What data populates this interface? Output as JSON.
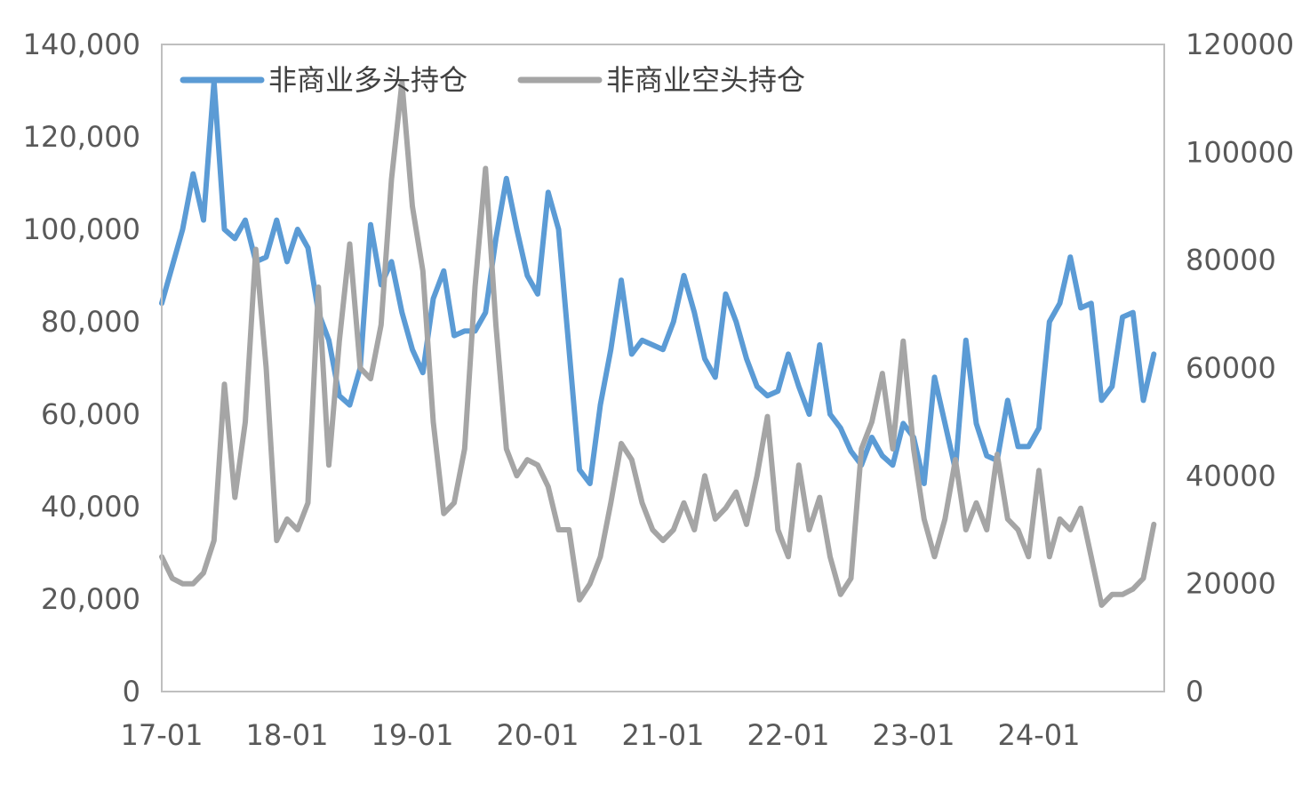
{
  "chart_data": {
    "type": "line",
    "title": "",
    "xlabel": "",
    "ylabel": "",
    "x_tick_labels": [
      "17-01",
      "18-01",
      "19-01",
      "20-01",
      "21-01",
      "22-01",
      "23-01",
      "24-01"
    ],
    "x_start": "2017-01",
    "x_end": "2024-12",
    "y_left": {
      "lim": [
        0,
        140000
      ],
      "tick_labels": [
        "0",
        "20,000",
        "40,000",
        "60,000",
        "80,000",
        "100,000",
        "120,000",
        "140,000"
      ]
    },
    "y_right": {
      "lim": [
        0,
        120000
      ],
      "tick_labels": [
        "0",
        "20000",
        "40000",
        "60000",
        "80000",
        "100000",
        "120000"
      ]
    },
    "grid": false,
    "legend_position": "top-left",
    "series": [
      {
        "name": "非商业多头持仓",
        "axis": "left",
        "color": "#5b9bd5",
        "points": [
          [
            "2017-01",
            84000
          ],
          [
            "2017-02",
            92000
          ],
          [
            "2017-03",
            100000
          ],
          [
            "2017-04",
            112000
          ],
          [
            "2017-05",
            102000
          ],
          [
            "2017-06",
            132000
          ],
          [
            "2017-07",
            100000
          ],
          [
            "2017-08",
            98000
          ],
          [
            "2017-09",
            102000
          ],
          [
            "2017-10",
            93000
          ],
          [
            "2017-11",
            94000
          ],
          [
            "2017-12",
            102000
          ],
          [
            "2018-01",
            93000
          ],
          [
            "2018-02",
            100000
          ],
          [
            "2018-03",
            96000
          ],
          [
            "2018-04",
            82000
          ],
          [
            "2018-05",
            76000
          ],
          [
            "2018-06",
            64000
          ],
          [
            "2018-07",
            62000
          ],
          [
            "2018-08",
            70000
          ],
          [
            "2018-09",
            101000
          ],
          [
            "2018-10",
            88000
          ],
          [
            "2018-11",
            93000
          ],
          [
            "2018-12",
            82000
          ],
          [
            "2019-01",
            74000
          ],
          [
            "2019-02",
            69000
          ],
          [
            "2019-03",
            85000
          ],
          [
            "2019-04",
            91000
          ],
          [
            "2019-05",
            77000
          ],
          [
            "2019-06",
            78000
          ],
          [
            "2019-07",
            78000
          ],
          [
            "2019-08",
            82000
          ],
          [
            "2019-09",
            98000
          ],
          [
            "2019-10",
            111000
          ],
          [
            "2019-11",
            100000
          ],
          [
            "2019-12",
            90000
          ],
          [
            "2020-01",
            86000
          ],
          [
            "2020-02",
            108000
          ],
          [
            "2020-03",
            100000
          ],
          [
            "2020-04",
            74000
          ],
          [
            "2020-05",
            48000
          ],
          [
            "2020-06",
            45000
          ],
          [
            "2020-07",
            62000
          ],
          [
            "2020-08",
            74000
          ],
          [
            "2020-09",
            89000
          ],
          [
            "2020-10",
            73000
          ],
          [
            "2020-11",
            76000
          ],
          [
            "2020-12",
            75000
          ],
          [
            "2021-01",
            74000
          ],
          [
            "2021-02",
            80000
          ],
          [
            "2021-03",
            90000
          ],
          [
            "2021-04",
            82000
          ],
          [
            "2021-05",
            72000
          ],
          [
            "2021-06",
            68000
          ],
          [
            "2021-07",
            86000
          ],
          [
            "2021-08",
            80000
          ],
          [
            "2021-09",
            72000
          ],
          [
            "2021-10",
            66000
          ],
          [
            "2021-11",
            64000
          ],
          [
            "2021-12",
            65000
          ],
          [
            "2022-01",
            73000
          ],
          [
            "2022-02",
            66000
          ],
          [
            "2022-03",
            60000
          ],
          [
            "2022-04",
            75000
          ],
          [
            "2022-05",
            60000
          ],
          [
            "2022-06",
            57000
          ],
          [
            "2022-07",
            52000
          ],
          [
            "2022-08",
            49000
          ],
          [
            "2022-09",
            55000
          ],
          [
            "2022-10",
            51000
          ],
          [
            "2022-11",
            49000
          ],
          [
            "2022-12",
            58000
          ],
          [
            "2023-01",
            55000
          ],
          [
            "2023-02",
            45000
          ],
          [
            "2023-03",
            68000
          ],
          [
            "2023-04",
            58000
          ],
          [
            "2023-05",
            48000
          ],
          [
            "2023-06",
            76000
          ],
          [
            "2023-07",
            58000
          ],
          [
            "2023-08",
            51000
          ],
          [
            "2023-09",
            50000
          ],
          [
            "2023-10",
            63000
          ],
          [
            "2023-11",
            53000
          ],
          [
            "2023-12",
            53000
          ],
          [
            "2024-01",
            57000
          ],
          [
            "2024-02",
            80000
          ],
          [
            "2024-03",
            84000
          ],
          [
            "2024-04",
            94000
          ],
          [
            "2024-05",
            83000
          ],
          [
            "2024-06",
            84000
          ],
          [
            "2024-07",
            63000
          ],
          [
            "2024-08",
            66000
          ],
          [
            "2024-09",
            81000
          ],
          [
            "2024-10",
            82000
          ],
          [
            "2024-11",
            63000
          ],
          [
            "2024-12",
            73000
          ]
        ]
      },
      {
        "name": "非商业空头持仓",
        "axis": "right",
        "color": "#a5a5a5",
        "points": [
          [
            "2017-01",
            25000
          ],
          [
            "2017-02",
            21000
          ],
          [
            "2017-03",
            20000
          ],
          [
            "2017-04",
            20000
          ],
          [
            "2017-05",
            22000
          ],
          [
            "2017-06",
            28000
          ],
          [
            "2017-07",
            57000
          ],
          [
            "2017-08",
            36000
          ],
          [
            "2017-09",
            50000
          ],
          [
            "2017-10",
            82000
          ],
          [
            "2017-11",
            60000
          ],
          [
            "2017-12",
            28000
          ],
          [
            "2018-01",
            32000
          ],
          [
            "2018-02",
            30000
          ],
          [
            "2018-03",
            35000
          ],
          [
            "2018-04",
            75000
          ],
          [
            "2018-05",
            42000
          ],
          [
            "2018-06",
            65000
          ],
          [
            "2018-07",
            83000
          ],
          [
            "2018-08",
            60000
          ],
          [
            "2018-09",
            58000
          ],
          [
            "2018-10",
            68000
          ],
          [
            "2018-11",
            95000
          ],
          [
            "2018-12",
            113000
          ],
          [
            "2019-01",
            90000
          ],
          [
            "2019-02",
            78000
          ],
          [
            "2019-03",
            50000
          ],
          [
            "2019-04",
            33000
          ],
          [
            "2019-05",
            35000
          ],
          [
            "2019-06",
            45000
          ],
          [
            "2019-07",
            75000
          ],
          [
            "2019-08",
            97000
          ],
          [
            "2019-09",
            68000
          ],
          [
            "2019-10",
            45000
          ],
          [
            "2019-11",
            40000
          ],
          [
            "2019-12",
            43000
          ],
          [
            "2020-01",
            42000
          ],
          [
            "2020-02",
            38000
          ],
          [
            "2020-03",
            30000
          ],
          [
            "2020-04",
            30000
          ],
          [
            "2020-05",
            17000
          ],
          [
            "2020-06",
            20000
          ],
          [
            "2020-07",
            25000
          ],
          [
            "2020-08",
            35000
          ],
          [
            "2020-09",
            46000
          ],
          [
            "2020-10",
            43000
          ],
          [
            "2020-11",
            35000
          ],
          [
            "2020-12",
            30000
          ],
          [
            "2021-01",
            28000
          ],
          [
            "2021-02",
            30000
          ],
          [
            "2021-03",
            35000
          ],
          [
            "2021-04",
            30000
          ],
          [
            "2021-05",
            40000
          ],
          [
            "2021-06",
            32000
          ],
          [
            "2021-07",
            34000
          ],
          [
            "2021-08",
            37000
          ],
          [
            "2021-09",
            31000
          ],
          [
            "2021-10",
            40000
          ],
          [
            "2021-11",
            51000
          ],
          [
            "2021-12",
            30000
          ],
          [
            "2022-01",
            25000
          ],
          [
            "2022-02",
            42000
          ],
          [
            "2022-03",
            30000
          ],
          [
            "2022-04",
            36000
          ],
          [
            "2022-05",
            25000
          ],
          [
            "2022-06",
            18000
          ],
          [
            "2022-07",
            21000
          ],
          [
            "2022-08",
            45000
          ],
          [
            "2022-09",
            50000
          ],
          [
            "2022-10",
            59000
          ],
          [
            "2022-11",
            45000
          ],
          [
            "2022-12",
            65000
          ],
          [
            "2023-01",
            45000
          ],
          [
            "2023-02",
            32000
          ],
          [
            "2023-03",
            25000
          ],
          [
            "2023-04",
            32000
          ],
          [
            "2023-05",
            43000
          ],
          [
            "2023-06",
            30000
          ],
          [
            "2023-07",
            35000
          ],
          [
            "2023-08",
            30000
          ],
          [
            "2023-09",
            44000
          ],
          [
            "2023-10",
            32000
          ],
          [
            "2023-11",
            30000
          ],
          [
            "2023-12",
            25000
          ],
          [
            "2024-01",
            41000
          ],
          [
            "2024-02",
            25000
          ],
          [
            "2024-03",
            32000
          ],
          [
            "2024-04",
            30000
          ],
          [
            "2024-05",
            34000
          ],
          [
            "2024-06",
            25000
          ],
          [
            "2024-07",
            16000
          ],
          [
            "2024-08",
            18000
          ],
          [
            "2024-09",
            18000
          ],
          [
            "2024-10",
            19000
          ],
          [
            "2024-11",
            21000
          ],
          [
            "2024-12",
            31000
          ]
        ]
      }
    ]
  }
}
